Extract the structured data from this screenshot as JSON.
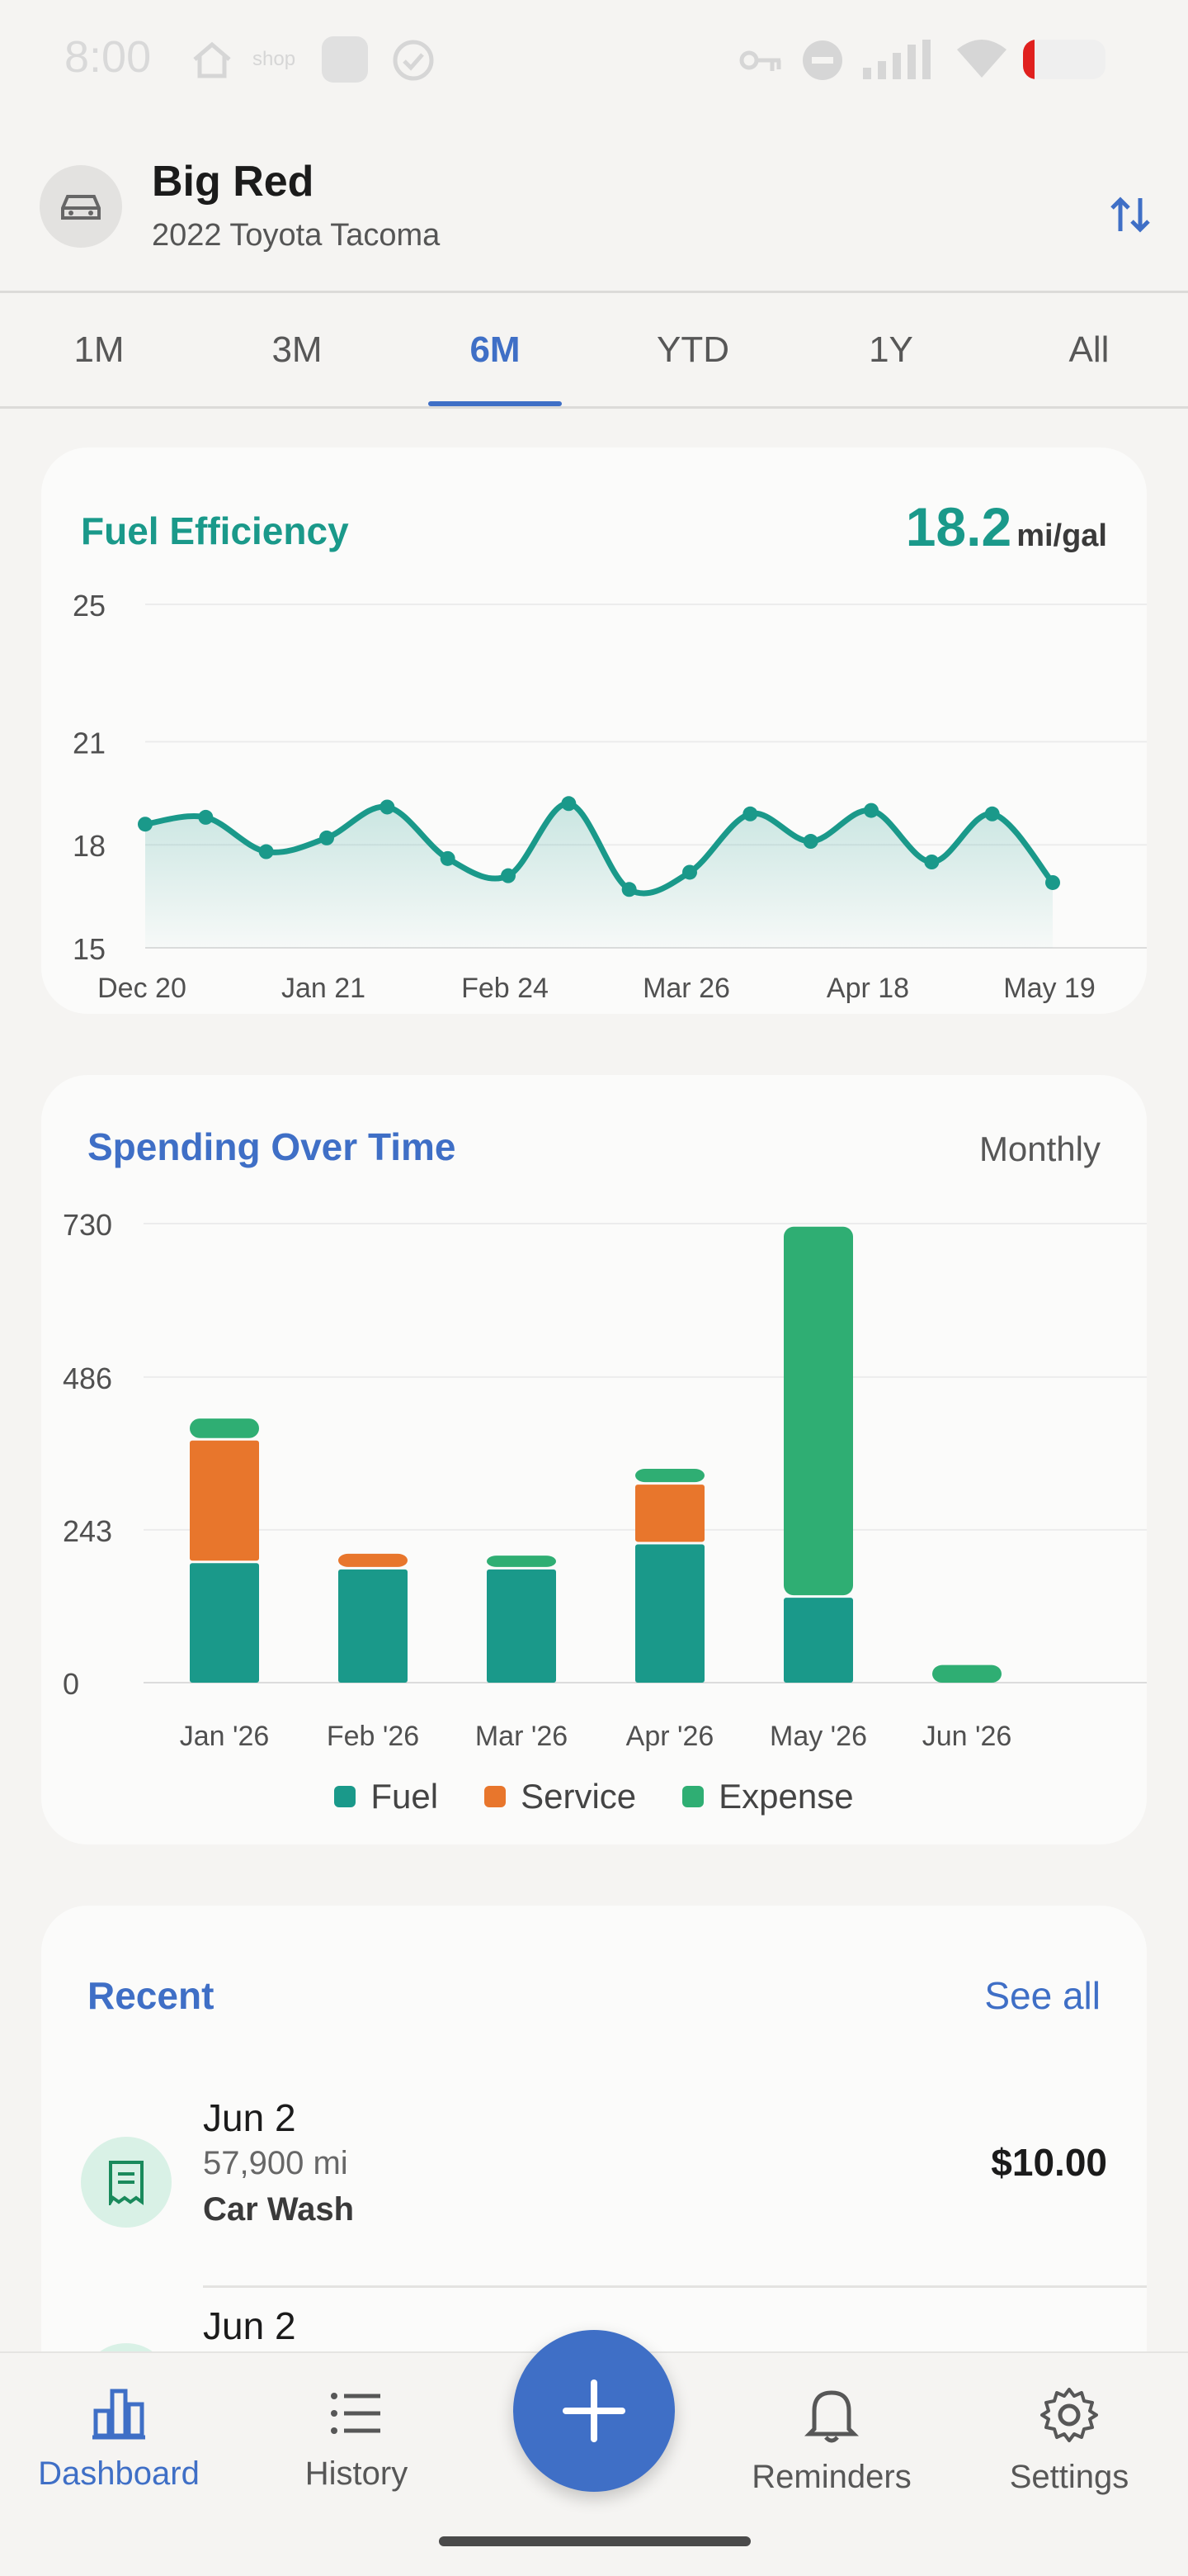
{
  "status_bar": {
    "time": "8:00",
    "shop_label": "shop"
  },
  "header": {
    "vehicle_name": "Big Red",
    "vehicle_model": "2022 Toyota Tacoma"
  },
  "tabs": [
    {
      "label": "1M",
      "active": false
    },
    {
      "label": "3M",
      "active": false
    },
    {
      "label": "6M",
      "active": true
    },
    {
      "label": "YTD",
      "active": false
    },
    {
      "label": "1Y",
      "active": false
    },
    {
      "label": "All",
      "active": false
    }
  ],
  "fuel_card": {
    "title": "Fuel Efficiency",
    "value": "18.2",
    "unit": "mi/gal"
  },
  "spend_card": {
    "title": "Spending Over Time",
    "period": "Monthly"
  },
  "recent": {
    "title": "Recent",
    "see_all": "See all",
    "items": [
      {
        "date": "Jun 2",
        "odometer": "57,900 mi",
        "category": "Car Wash",
        "amount": "$10.00"
      },
      {
        "date": "Jun 2"
      }
    ]
  },
  "nav": {
    "dashboard": "Dashboard",
    "history": "History",
    "reminders": "Reminders",
    "settings": "Settings"
  },
  "colors": {
    "accent_blue": "#3f6fc6",
    "teal": "#1a998a",
    "fuel": "#1a998a",
    "service": "#e8762c",
    "expense": "#2fae73"
  },
  "chart_data": [
    {
      "type": "line",
      "title": "Fuel Efficiency",
      "ylim": [
        15,
        25
      ],
      "yticks": [
        15,
        18,
        21,
        25
      ],
      "xtick_labels": [
        "Dec 20",
        "Jan 21",
        "Feb 24",
        "Mar 26",
        "Apr 18",
        "May 19"
      ],
      "series": [
        {
          "values": [
            18.6,
            18.8,
            17.8,
            18.2,
            19.1,
            17.6,
            17.1,
            19.2,
            16.7,
            17.2,
            18.9,
            18.1,
            19.0,
            17.5,
            18.9,
            16.9
          ]
        }
      ],
      "grid": true
    },
    {
      "type": "bar",
      "stacked": true,
      "title": "Spending Over Time",
      "categories": [
        "Jan '26",
        "Feb '26",
        "Mar '26",
        "Apr '26",
        "May '26",
        "Jun '26"
      ],
      "ylim": [
        0,
        730
      ],
      "yticks": [
        0,
        243,
        486,
        730
      ],
      "series": [
        {
          "name": "Fuel",
          "values": [
            190,
            180,
            180,
            220,
            135,
            0
          ]
        },
        {
          "name": "Service",
          "values": [
            195,
            25,
            0,
            95,
            0,
            0
          ]
        },
        {
          "name": "Expense",
          "values": [
            35,
            0,
            22,
            25,
            590,
            28
          ]
        }
      ],
      "legend": "bottom",
      "grid": true
    }
  ]
}
